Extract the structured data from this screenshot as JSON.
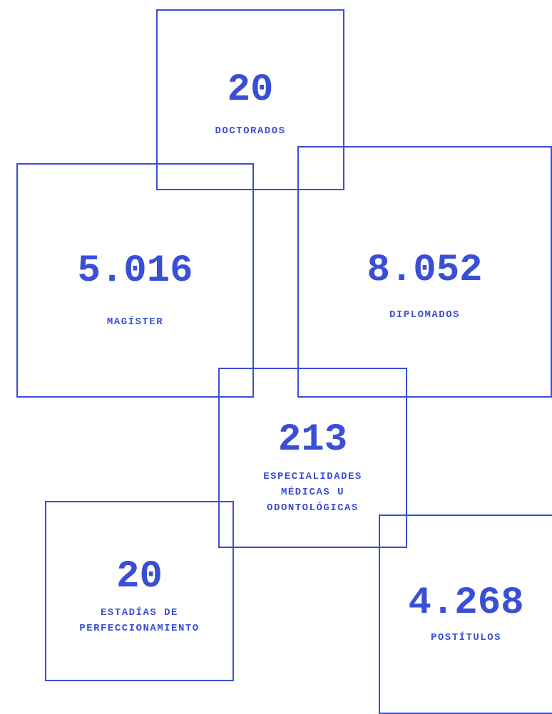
{
  "stats": [
    {
      "number": "20",
      "label": [
        "DOCTORADOS"
      ]
    },
    {
      "number": "5.016",
      "label": [
        "MAGÍSTER"
      ]
    },
    {
      "number": "8.052",
      "label": [
        "DIPLOMADOS"
      ]
    },
    {
      "number": "213",
      "label": [
        "ESPECIALIDADES",
        "MÉDICAS U",
        "ODONTOLÓGICAS"
      ]
    },
    {
      "number": "20",
      "label": [
        "ESTADÍAS DE",
        "PERFECCIONAMIENTO"
      ]
    },
    {
      "number": "4.268",
      "label": [
        "POSTÍTULOS"
      ]
    }
  ]
}
